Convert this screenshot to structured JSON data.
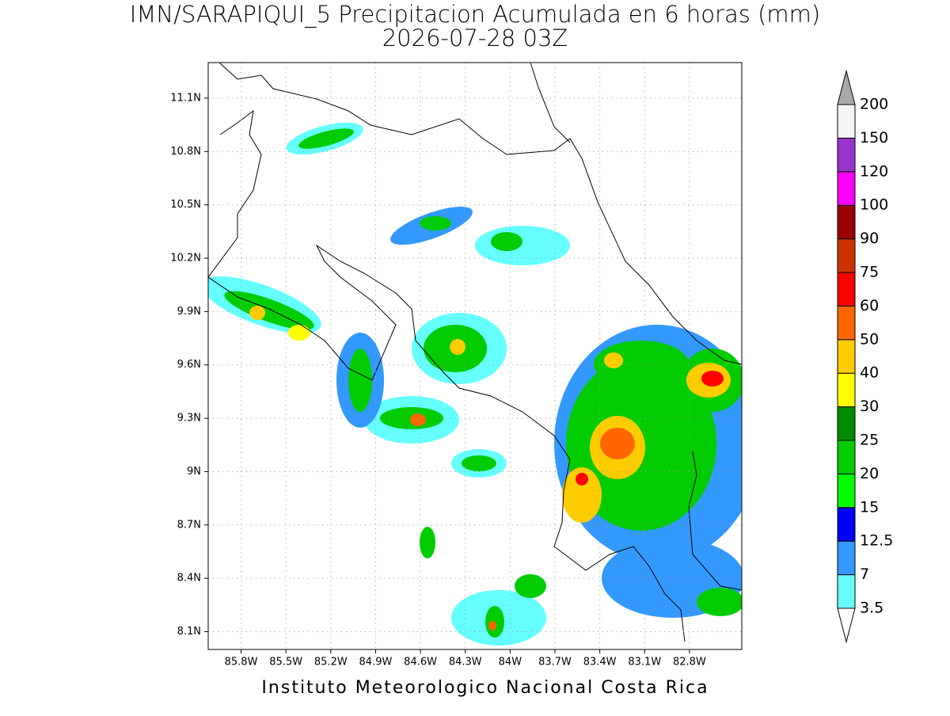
{
  "map": {
    "title": "IMN/SARAPIQUI_5 Precipitacion Acumulada en 6 horas (mm)",
    "subtitle": "2026-07-28 03Z",
    "footer": "Instituto Meteorologico Nacional Costa Rica",
    "lon_range": [
      -86.02,
      -82.45
    ],
    "lat_range": [
      8.0,
      11.3
    ],
    "lat_ticks": [
      {
        "value": 8.1,
        "label": "8.1N"
      },
      {
        "value": 8.4,
        "label": "8.4N"
      },
      {
        "value": 8.7,
        "label": "8.7N"
      },
      {
        "value": 9.0,
        "label": "9N"
      },
      {
        "value": 9.3,
        "label": "9.3N"
      },
      {
        "value": 9.6,
        "label": "9.6N"
      },
      {
        "value": 9.9,
        "label": "9.9N"
      },
      {
        "value": 10.2,
        "label": "10.2N"
      },
      {
        "value": 10.5,
        "label": "10.5N"
      },
      {
        "value": 10.8,
        "label": "10.8N"
      },
      {
        "value": 11.1,
        "label": "11.1N"
      }
    ],
    "lon_ticks": [
      {
        "value": -85.8,
        "label": "85.8W"
      },
      {
        "value": -85.5,
        "label": "85.5W"
      },
      {
        "value": -85.2,
        "label": "85.2W"
      },
      {
        "value": -84.9,
        "label": "84.9W"
      },
      {
        "value": -84.6,
        "label": "84.6W"
      },
      {
        "value": -84.3,
        "label": "84.3W"
      },
      {
        "value": -84.0,
        "label": "84W"
      },
      {
        "value": -83.7,
        "label": "83.7W"
      },
      {
        "value": -83.4,
        "label": "83.4W"
      },
      {
        "value": -83.1,
        "label": "83.1W"
      },
      {
        "value": -82.8,
        "label": "82.8W"
      }
    ],
    "grid": true,
    "legend": {
      "levels": [
        3.5,
        7,
        12.5,
        15,
        20,
        25,
        30,
        40,
        50,
        60,
        75,
        90,
        100,
        120,
        150,
        200
      ],
      "colors": [
        "#66ffff",
        "#3399ff",
        "#0000ff",
        "#00ff00",
        "#00cc00",
        "#008c00",
        "#ffff00",
        "#ffcc00",
        "#ff6600",
        "#ff0000",
        "#cc3300",
        "#990000",
        "#ff00ff",
        "#9933cc",
        "#f4f4f4"
      ],
      "under_color": "#ffffff",
      "over_color": "#a8a8a8"
    }
  }
}
